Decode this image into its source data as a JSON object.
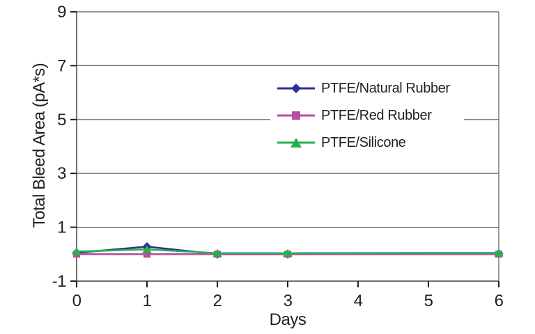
{
  "chart_data": {
    "type": "line",
    "title": "",
    "xlabel": "Days",
    "ylabel": "Total Bleed Area (pA*s)",
    "x": [
      0,
      1,
      2,
      3,
      6
    ],
    "series": [
      {
        "name": "PTFE/Natural Rubber",
        "marker": "diamond",
        "color": "#2e3192",
        "values": [
          0.05,
          0.28,
          0.0,
          0.0,
          0.02
        ]
      },
      {
        "name": "PTFE/Red Rubber",
        "marker": "square",
        "color": "#b4509e",
        "values": [
          0.0,
          0.0,
          0.0,
          0.0,
          0.0
        ]
      },
      {
        "name": "PTFE/Silicone",
        "marker": "triangle",
        "color": "#26b04e",
        "values": [
          0.1,
          0.18,
          0.04,
          0.04,
          0.05
        ]
      }
    ],
    "x_ticks": [
      0,
      1,
      2,
      3,
      4,
      5,
      6
    ],
    "y_ticks": [
      -1,
      1,
      3,
      5,
      7,
      9
    ],
    "xlim": [
      0,
      6
    ],
    "ylim": [
      -1,
      9
    ],
    "grid": "horizontal",
    "legend_position": "inside-center-right",
    "axis_color": "#58595b",
    "text_color": "#231f20",
    "background": "#ffffff"
  }
}
